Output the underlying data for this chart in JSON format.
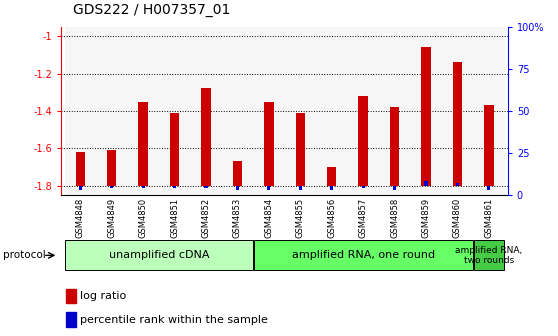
{
  "title": "GDS222 / H007357_01",
  "samples": [
    "GSM4848",
    "GSM4849",
    "GSM4850",
    "GSM4851",
    "GSM4852",
    "GSM4853",
    "GSM4854",
    "GSM4855",
    "GSM4856",
    "GSM4857",
    "GSM4858",
    "GSM4859",
    "GSM4860",
    "GSM4861"
  ],
  "log_ratio": [
    -1.62,
    -1.61,
    -1.35,
    -1.41,
    -1.28,
    -1.67,
    -1.35,
    -1.41,
    -1.7,
    -1.32,
    -1.38,
    -1.06,
    -1.14,
    -1.37
  ],
  "percentile": [
    3,
    4,
    4,
    4,
    4,
    3,
    3,
    3,
    3,
    4,
    3,
    8,
    7,
    3
  ],
  "ylim": [
    -1.85,
    -0.95
  ],
  "yticks": [
    -1.8,
    -1.6,
    -1.4,
    -1.2,
    -1.0
  ],
  "ytick_labels": [
    "-1.8",
    "-1.6",
    "-1.4",
    "-1.2",
    "-1"
  ],
  "right_yticks": [
    0,
    25,
    50,
    75,
    100
  ],
  "right_ytick_labels": [
    "0",
    "25",
    "50",
    "75",
    "100%"
  ],
  "bar_bottom": -1.8,
  "red_color": "#cc0000",
  "blue_color": "#0000cc",
  "bg_color": "#ffffff",
  "title_fontsize": 10,
  "tick_label_fontsize": 7,
  "sample_label_fontsize": 6,
  "protocol_fontsize": 8,
  "group_bounds": [
    [
      0,
      5,
      "unamplified cDNA",
      "#bbffbb"
    ],
    [
      6,
      12,
      "amplified RNA, one round",
      "#66ff66"
    ],
    [
      13,
      13,
      "amplified RNA,\ntwo rounds",
      "#44cc44"
    ]
  ]
}
